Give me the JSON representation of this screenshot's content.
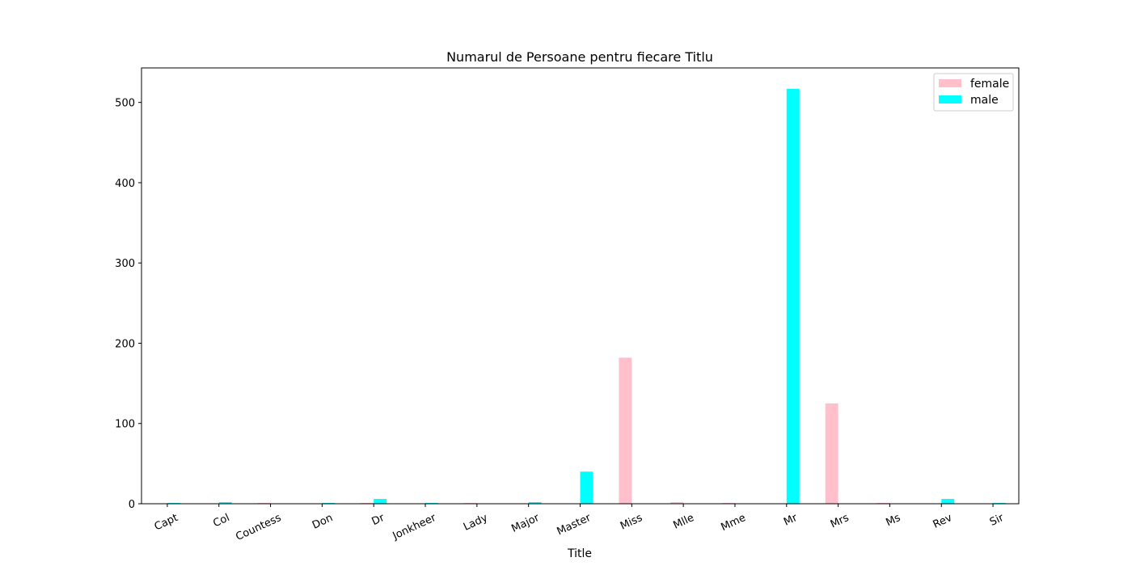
{
  "chart_data": {
    "type": "bar",
    "title": "Numarul de Persoane pentru fiecare Titlu",
    "xlabel": "Title",
    "ylabel": "",
    "categories": [
      "Capt",
      "Col",
      "Countess",
      "Don",
      "Dr",
      "Jonkheer",
      "Lady",
      "Major",
      "Master",
      "Miss",
      "Mlle",
      "Mme",
      "Mr",
      "Mrs",
      "Ms",
      "Rev",
      "Sir"
    ],
    "series": [
      {
        "name": "female",
        "color": "#ffc0cb",
        "values": [
          0,
          0,
          1,
          0,
          1,
          0,
          1,
          0,
          0,
          182,
          2,
          1,
          0,
          125,
          1,
          0,
          0
        ]
      },
      {
        "name": "male",
        "color": "#00ffff",
        "values": [
          1,
          2,
          0,
          1,
          6,
          1,
          0,
          2,
          40,
          0,
          0,
          0,
          517,
          0,
          0,
          6,
          1
        ]
      }
    ],
    "yticks": [
      0,
      100,
      200,
      300,
      400,
      500
    ],
    "ylim": [
      0,
      543
    ],
    "grid": false,
    "legend_position": "top-right"
  }
}
